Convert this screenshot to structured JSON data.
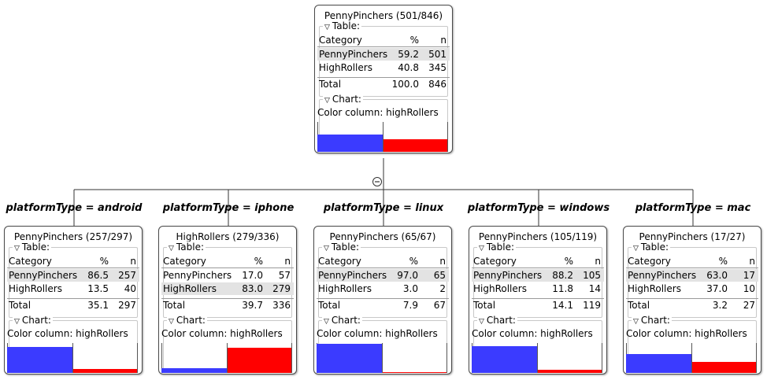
{
  "table_label": "Table:",
  "chart_label": "Chart:",
  "color_column": "Color column: highRollers",
  "columns": {
    "category": "Category",
    "pct": "%",
    "n": "n"
  },
  "total_label": "Total",
  "collapse_icon": "minus-circle-icon",
  "colors": {
    "penny": "#3b3bff",
    "high": "#ff0000",
    "selected_row": "#e3e3e3"
  },
  "root": {
    "title": "PennyPinchers (501/846)",
    "rows": [
      {
        "cat": "PennyPinchers",
        "pct": "59.2",
        "n": "501",
        "sel": true
      },
      {
        "cat": "HighRollers",
        "pct": "40.8",
        "n": "345",
        "sel": false
      }
    ],
    "total": {
      "pct": "100.0",
      "n": "846"
    },
    "bar_fractions": [
      0.592,
      0.408
    ]
  },
  "children": [
    {
      "split": "platformType = android",
      "title": "PennyPinchers (257/297)",
      "rows": [
        {
          "cat": "PennyPinchers",
          "pct": "86.5",
          "n": "257",
          "sel": true
        },
        {
          "cat": "HighRollers",
          "pct": "13.5",
          "n": "40",
          "sel": false
        }
      ],
      "total": {
        "pct": "35.1",
        "n": "297"
      },
      "bar_fractions": [
        0.865,
        0.135
      ]
    },
    {
      "split": "platformType = iphone",
      "title": "HighRollers (279/336)",
      "rows": [
        {
          "cat": "PennyPinchers",
          "pct": "17.0",
          "n": "57",
          "sel": false
        },
        {
          "cat": "HighRollers",
          "pct": "83.0",
          "n": "279",
          "sel": true
        }
      ],
      "total": {
        "pct": "39.7",
        "n": "336"
      },
      "bar_fractions": [
        0.17,
        0.83
      ]
    },
    {
      "split": "platformType = linux",
      "title": "PennyPinchers (65/67)",
      "rows": [
        {
          "cat": "PennyPinchers",
          "pct": "97.0",
          "n": "65",
          "sel": true
        },
        {
          "cat": "HighRollers",
          "pct": "3.0",
          "n": "2",
          "sel": false
        }
      ],
      "total": {
        "pct": "7.9",
        "n": "67"
      },
      "bar_fractions": [
        0.97,
        0.03
      ]
    },
    {
      "split": "platformType = windows",
      "title": "PennyPinchers (105/119)",
      "rows": [
        {
          "cat": "PennyPinchers",
          "pct": "88.2",
          "n": "105",
          "sel": true
        },
        {
          "cat": "HighRollers",
          "pct": "11.8",
          "n": "14",
          "sel": false
        }
      ],
      "total": {
        "pct": "14.1",
        "n": "119"
      },
      "bar_fractions": [
        0.882,
        0.118
      ]
    },
    {
      "split": "platformType = mac",
      "title": "PennyPinchers (17/27)",
      "rows": [
        {
          "cat": "PennyPinchers",
          "pct": "63.0",
          "n": "17",
          "sel": true
        },
        {
          "cat": "HighRollers",
          "pct": "37.0",
          "n": "10",
          "sel": false
        }
      ],
      "total": {
        "pct": "3.2",
        "n": "27"
      },
      "bar_fractions": [
        0.63,
        0.37
      ]
    }
  ]
}
